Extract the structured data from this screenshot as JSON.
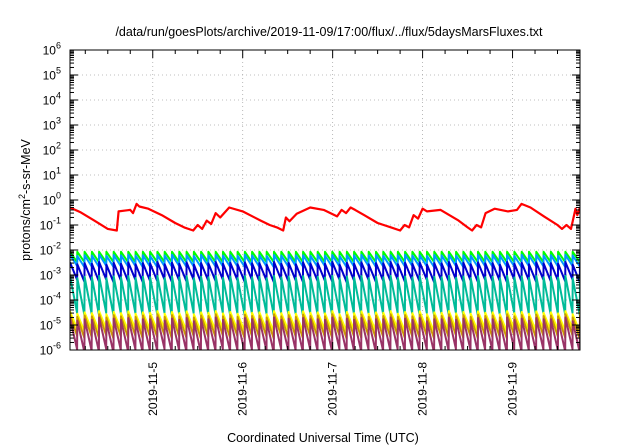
{
  "chart_data": {
    "type": "line",
    "title": "/data/run/goesPlots/archive/2019-11-09/17:00/flux/../flux/5daysMarsFluxes.txt",
    "xlabel": "Coordinated Universal Time (UTC)",
    "ylabel": {
      "prefix": "protons/cm",
      "sup": "2",
      "suffix": "-s-sr-MeV"
    },
    "y_scale": "log",
    "ylim": [
      1e-06,
      1000000.0
    ],
    "y_ticks": [
      {
        "exp": -6,
        "base": "10",
        "label": "-6"
      },
      {
        "exp": -5,
        "base": "10",
        "label": "-5"
      },
      {
        "exp": -4,
        "base": "10",
        "label": "-4"
      },
      {
        "exp": -3,
        "base": "10",
        "label": "-3"
      },
      {
        "exp": -2,
        "base": "10",
        "label": "-2"
      },
      {
        "exp": -1,
        "base": "10",
        "label": "-1"
      },
      {
        "exp": 0,
        "base": "10",
        "label": "0"
      },
      {
        "exp": 1,
        "base": "10",
        "label": "1"
      },
      {
        "exp": 2,
        "base": "10",
        "label": "2"
      },
      {
        "exp": 3,
        "base": "10",
        "label": "3"
      },
      {
        "exp": 4,
        "base": "10",
        "label": "4"
      },
      {
        "exp": 5,
        "base": "10",
        "label": "5"
      },
      {
        "exp": 6,
        "base": "10",
        "label": "6"
      }
    ],
    "x_unit": "days",
    "xlim": [
      4.08,
      9.75
    ],
    "x_ticks": [
      {
        "pos": 5,
        "label": "2019-11-5"
      },
      {
        "pos": 6,
        "label": "2019-11-6"
      },
      {
        "pos": 7,
        "label": "2019-11-7"
      },
      {
        "pos": 8,
        "label": "2019-11-8"
      },
      {
        "pos": 9,
        "label": "2019-11-9"
      }
    ],
    "grid": true,
    "series": [
      {
        "color": "#ff0000",
        "width": 2.2,
        "x": [
          4.08,
          4.2,
          4.35,
          4.5,
          4.6,
          4.62,
          4.75,
          4.78,
          4.82,
          4.85,
          4.95,
          5.1,
          5.25,
          5.35,
          5.45,
          5.5,
          5.55,
          5.6,
          5.65,
          5.7,
          5.75,
          5.85,
          6.0,
          6.2,
          6.3,
          6.38,
          6.45,
          6.48,
          6.52,
          6.6,
          6.75,
          6.9,
          7.05,
          7.1,
          7.15,
          7.2,
          7.25,
          7.35,
          7.5,
          7.65,
          7.75,
          7.8,
          7.85,
          7.9,
          7.95,
          8.0,
          8.05,
          8.2,
          8.4,
          8.5,
          8.55,
          8.6,
          8.65,
          8.7,
          8.8,
          8.95,
          9.05,
          9.1,
          9.2,
          9.35,
          9.5,
          9.55,
          9.6,
          9.65,
          9.7,
          9.72,
          9.75
        ],
        "y": [
          0.5,
          0.32,
          0.15,
          0.07,
          0.06,
          0.35,
          0.4,
          0.3,
          0.7,
          0.55,
          0.45,
          0.25,
          0.12,
          0.08,
          0.06,
          0.1,
          0.07,
          0.15,
          0.11,
          0.3,
          0.2,
          0.5,
          0.35,
          0.15,
          0.1,
          0.08,
          0.06,
          0.2,
          0.14,
          0.28,
          0.5,
          0.4,
          0.22,
          0.4,
          0.3,
          0.5,
          0.4,
          0.25,
          0.12,
          0.08,
          0.06,
          0.1,
          0.08,
          0.25,
          0.18,
          0.45,
          0.35,
          0.4,
          0.15,
          0.08,
          0.06,
          0.1,
          0.08,
          0.3,
          0.45,
          0.35,
          0.4,
          0.7,
          0.5,
          0.22,
          0.1,
          0.07,
          0.1,
          0.07,
          0.45,
          0.25,
          0.5
        ]
      },
      {
        "color": "#00ff00",
        "width": 2,
        "sawtooth": {
          "teeth": [
            0.0085,
            0.0085,
            0.0085,
            0.0085,
            0.0085,
            0.0085,
            0.0085,
            0.0085,
            0.0085,
            0.0085,
            0.0085,
            0.0085,
            0.0085,
            0.0085,
            0.0085,
            0.0085,
            0.0085,
            0.0085,
            0.0085,
            0.0085,
            0.0085,
            0.0085,
            0.0085,
            0.0085,
            0.0085,
            0.0085,
            0.0085,
            0.0085,
            0.0085,
            0.0085,
            0.0085,
            0.0085,
            0.0085,
            0.0085,
            0.0085,
            0.0085,
            0.0085,
            0.0085,
            0.0085,
            0.0085,
            0.0085,
            0.0085,
            0.0085,
            0.0085,
            0.0085,
            0.0085,
            0.0085,
            0.0085,
            0.0085,
            0.0085,
            0.0085,
            0.0085,
            0.0085,
            0.0085,
            0.0085,
            0.0085,
            0.0085,
            0.0085,
            0.0085,
            0.0085,
            0.0085,
            0.0085,
            0.0085,
            0.0085,
            0.0085,
            0.0085,
            0.0085,
            0.0085,
            0.0085,
            0.0085
          ],
          "ratio": 2.6,
          "x0": 4.08,
          "x1": 9.75
        }
      },
      {
        "color": "#0099ff",
        "width": 2,
        "sawtooth": {
          "teeth": [
            0.0065,
            0.0058,
            0.0062,
            0.006,
            0.0066,
            0.0059,
            0.0063,
            0.0061,
            0.0064,
            0.006,
            0.0062,
            0.0058,
            0.0063,
            0.0061,
            0.0065,
            0.006,
            0.0062,
            0.0058,
            0.0064,
            0.0061,
            0.0063,
            0.006,
            0.0062,
            0.0059,
            0.0064,
            0.0061,
            0.0062,
            0.0058,
            0.0063,
            0.006,
            0.0065,
            0.0061,
            0.0062,
            0.0059,
            0.0064,
            0.006,
            0.0063,
            0.0058,
            0.0062,
            0.0061,
            0.0064,
            0.006,
            0.0063,
            0.0059,
            0.0062,
            0.0061,
            0.0065,
            0.006,
            0.0062,
            0.0058,
            0.0063,
            0.0061,
            0.0064,
            0.006,
            0.0062,
            0.0059,
            0.0063,
            0.0061,
            0.0065,
            0.006,
            0.0062,
            0.0058,
            0.0064,
            0.0061,
            0.0063,
            0.006,
            0.0062,
            0.0059,
            0.0064,
            0.0061
          ],
          "ratio": 2.8,
          "x0": 4.08,
          "x1": 9.75
        }
      },
      {
        "color": "#0000cc",
        "width": 2,
        "sawtooth": {
          "teeth": [
            0.0032,
            0.0027,
            0.003,
            0.0028,
            0.0033,
            0.0026,
            0.0031,
            0.0028,
            0.0032,
            0.0027,
            0.003,
            0.0029,
            0.0033,
            0.0027,
            0.0031,
            0.0028,
            0.0032,
            0.0026,
            0.003,
            0.0029,
            0.0033,
            0.0028,
            0.0031,
            0.0027,
            0.0032,
            0.0029,
            0.003,
            0.0026,
            0.0033,
            0.0028,
            0.0031,
            0.0027,
            0.0032,
            0.0029,
            0.003,
            0.0028,
            0.0033,
            0.0026,
            0.0031,
            0.0028,
            0.0032,
            0.0027,
            0.003,
            0.0029,
            0.0033,
            0.0027,
            0.0031,
            0.0028,
            0.0032,
            0.0026,
            0.003,
            0.0029,
            0.0033,
            0.0028,
            0.0031,
            0.0027,
            0.0032,
            0.0029,
            0.003,
            0.0026,
            0.0033,
            0.0028,
            0.0031,
            0.0027,
            0.0032,
            0.0029,
            0.003,
            0.0028,
            0.0033,
            0.0026
          ],
          "ratio": 5,
          "x0": 4.08,
          "x1": 9.75
        }
      },
      {
        "color": "#00bb99",
        "width": 2,
        "sawtooth": {
          "teeth": [
            0.0009,
            0.00075,
            0.00085,
            0.0008,
            0.00092,
            0.00074,
            0.00088,
            0.0008,
            0.0009,
            0.00076,
            0.00085,
            0.00082,
            0.00092,
            0.00075,
            0.00087,
            0.0008,
            0.0009,
            0.00074,
            0.00085,
            0.00082,
            0.00092,
            0.00078,
            0.00087,
            0.00075,
            0.0009,
            0.00081,
            0.00085,
            0.00074,
            0.00092,
            0.0008,
            0.00087,
            0.00076,
            0.0009,
            0.00082,
            0.00085,
            0.00079,
            0.00092,
            0.00074,
            0.00087,
            0.0008,
            0.0009,
            0.00075,
            0.00085,
            0.00082,
            0.00092,
            0.00076,
            0.00087,
            0.0008,
            0.0009,
            0.00074,
            0.00085,
            0.00082,
            0.00092,
            0.00078,
            0.00087,
            0.00075,
            0.0009,
            0.00081,
            0.00085,
            0.00074,
            0.00092,
            0.0008,
            0.00087,
            0.00076,
            0.0009,
            0.00082,
            0.00085,
            0.00079,
            0.00092,
            0.00074
          ],
          "ratio": 30,
          "x0": 4.08,
          "x1": 9.75
        }
      },
      {
        "color": "#ffff00",
        "width": 2,
        "sawtooth": {
          "teeth": [
            3.5e-05,
            2.8e-05,
            3.2e-05,
            3e-05,
            3.6e-05,
            2.7e-05,
            3.3e-05,
            3e-05,
            3.5e-05,
            2.8e-05,
            3.2e-05,
            3.1e-05,
            3.6e-05,
            2.8e-05,
            3.3e-05,
            3e-05,
            3.5e-05,
            2.7e-05,
            3.2e-05,
            3.1e-05,
            3.6e-05,
            2.9e-05,
            3.3e-05,
            2.8e-05,
            3.5e-05,
            3.1e-05,
            3.2e-05,
            2.7e-05,
            3.6e-05,
            3e-05,
            3.3e-05,
            2.8e-05,
            3.5e-05,
            3.1e-05,
            3.2e-05,
            2.9e-05,
            3.6e-05,
            2.7e-05,
            3.3e-05,
            3e-05,
            3.5e-05,
            2.8e-05,
            3.2e-05,
            3.1e-05,
            3.6e-05,
            2.8e-05,
            3.3e-05,
            3e-05,
            3.5e-05,
            2.7e-05,
            3.2e-05,
            3.1e-05,
            3.6e-05,
            2.9e-05,
            3.3e-05,
            2.8e-05,
            3.5e-05,
            3.1e-05,
            3.2e-05,
            2.7e-05,
            3.6e-05,
            3e-05,
            3.3e-05,
            2.8e-05,
            3.5e-05,
            3.1e-05,
            3.2e-05,
            2.9e-05,
            3.6e-05,
            2.7e-05
          ],
          "ratio": 5,
          "x0": 4.08,
          "x1": 9.75
        }
      },
      {
        "color": "#cc9900",
        "width": 2,
        "sawtooth": {
          "teeth": [
            2.6e-05,
            2.1e-05,
            2.4e-05,
            2.2e-05,
            2.7e-05,
            2e-05,
            2.5e-05,
            2.2e-05,
            2.6e-05,
            2.1e-05,
            2.4e-05,
            2.3e-05,
            2.7e-05,
            2.1e-05,
            2.5e-05,
            2.2e-05,
            2.6e-05,
            2e-05,
            2.4e-05,
            2.3e-05,
            2.7e-05,
            2.2e-05,
            2.5e-05,
            2.1e-05,
            2.6e-05,
            2.3e-05,
            2.4e-05,
            2e-05,
            2.7e-05,
            2.2e-05,
            2.5e-05,
            2.1e-05,
            2.6e-05,
            2.3e-05,
            2.4e-05,
            2.2e-05,
            2.7e-05,
            2e-05,
            2.5e-05,
            2.2e-05,
            2.6e-05,
            2.1e-05,
            2.4e-05,
            2.3e-05,
            2.7e-05,
            2.1e-05,
            2.5e-05,
            2.2e-05,
            2.6e-05,
            2e-05,
            2.4e-05,
            2.3e-05,
            2.7e-05,
            2.2e-05,
            2.5e-05,
            2.1e-05,
            2.6e-05,
            2.3e-05,
            2.4e-05,
            2e-05,
            2.7e-05,
            2.2e-05,
            2.5e-05,
            2.1e-05,
            2.6e-05,
            2.3e-05,
            2.4e-05,
            2.2e-05,
            2.7e-05,
            2e-05
          ],
          "ratio": 7,
          "x0": 4.08,
          "x1": 9.75
        }
      },
      {
        "color": "#993366",
        "width": 2,
        "sawtooth": {
          "teeth": [
            1.9e-05,
            1.5e-05,
            1.7e-05,
            1.6e-05,
            2e-05,
            1.4e-05,
            1.8e-05,
            1.6e-05,
            1.9e-05,
            1.5e-05,
            1.7e-05,
            1.7e-05,
            2e-05,
            1.5e-05,
            1.8e-05,
            1.6e-05,
            1.9e-05,
            1.4e-05,
            1.7e-05,
            1.7e-05,
            2e-05,
            1.6e-05,
            1.8e-05,
            1.5e-05,
            1.9e-05,
            1.7e-05,
            1.7e-05,
            1.4e-05,
            2e-05,
            1.6e-05,
            1.8e-05,
            1.5e-05,
            1.9e-05,
            1.7e-05,
            1.7e-05,
            1.6e-05,
            2e-05,
            1.4e-05,
            1.8e-05,
            1.6e-05,
            1.9e-05,
            1.5e-05,
            1.7e-05,
            1.7e-05,
            2e-05,
            1.5e-05,
            1.8e-05,
            1.6e-05,
            1.9e-05,
            1.4e-05,
            1.7e-05,
            1.7e-05,
            2e-05,
            1.6e-05,
            1.8e-05,
            1.5e-05,
            1.9e-05,
            1.7e-05,
            1.7e-05,
            1.4e-05,
            2e-05,
            1.6e-05,
            1.8e-05,
            1.5e-05,
            1.9e-05,
            1.7e-05,
            1.7e-05,
            1.6e-05,
            2e-05,
            1.4e-05
          ],
          "ratio": 18,
          "x0": 4.08,
          "x1": 9.75
        }
      }
    ]
  }
}
